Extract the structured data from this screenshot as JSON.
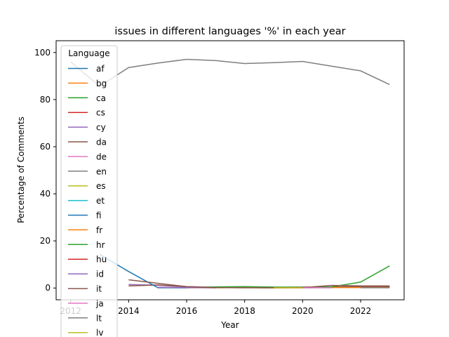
{
  "chart_data": {
    "type": "line",
    "title": "issues in different languages '%' in each year",
    "xlabel": "Year",
    "ylabel": "Percentage of Comments",
    "xlim": [
      2011.5,
      2023.5
    ],
    "ylim": [
      -5,
      105
    ],
    "x_ticks": [
      "2012",
      "2014",
      "2016",
      "2018",
      "2020",
      "2022"
    ],
    "y_ticks": [
      "0",
      "20",
      "40",
      "60",
      "80",
      "100"
    ],
    "grid": false,
    "legend": {
      "title": "Language",
      "placement": "upper-left"
    },
    "series": [
      {
        "name": "af",
        "color": "#1f77b4",
        "points": [
          [
            2015,
            0.1
          ],
          [
            2016,
            0.1
          ]
        ]
      },
      {
        "name": "bg",
        "color": "#ff7f0e",
        "points": [
          [
            2016,
            0.2
          ],
          [
            2017,
            0.1
          ]
        ]
      },
      {
        "name": "ca",
        "color": "#2ca02c",
        "points": [
          [
            2016,
            0.3
          ],
          [
            2017,
            0.2
          ],
          [
            2018,
            0.2
          ],
          [
            2019,
            0.1
          ],
          [
            2020,
            0.2
          ],
          [
            2021,
            0.3
          ],
          [
            2022,
            0.4
          ],
          [
            2023,
            0.2
          ]
        ]
      },
      {
        "name": "cs",
        "color": "#d62728",
        "points": [
          [
            2021,
            0.4
          ],
          [
            2022,
            0.5
          ],
          [
            2023,
            0.4
          ]
        ]
      },
      {
        "name": "cy",
        "color": "#9467bd",
        "points": [
          [
            2014,
            1.5
          ],
          [
            2015,
            1.2
          ],
          [
            2016,
            0.5
          ]
        ]
      },
      {
        "name": "da",
        "color": "#8c564b",
        "points": [
          [
            2014,
            0.9
          ],
          [
            2015,
            1.3
          ],
          [
            2016,
            0.6
          ],
          [
            2017,
            0.3
          ],
          [
            2018,
            0.5
          ],
          [
            2019,
            0.3
          ],
          [
            2020,
            0.4
          ],
          [
            2021,
            0.5
          ],
          [
            2022,
            0.6
          ],
          [
            2023,
            0.7
          ]
        ]
      },
      {
        "name": "de",
        "color": "#e377c2",
        "points": [
          [
            2017,
            0.2
          ],
          [
            2018,
            0.1
          ]
        ]
      },
      {
        "name": "en",
        "color": "#7f7f7f",
        "points": [
          [
            2012,
            96.0
          ],
          [
            2013,
            85.7
          ],
          [
            2014,
            93.6
          ],
          [
            2015,
            95.5
          ],
          [
            2016,
            97.1
          ],
          [
            2017,
            96.6
          ],
          [
            2018,
            95.3
          ],
          [
            2019,
            95.7
          ],
          [
            2020,
            96.2
          ],
          [
            2021,
            94.2
          ],
          [
            2022,
            92.2
          ],
          [
            2023,
            86.4
          ]
        ]
      },
      {
        "name": "es",
        "color": "#bcbd22",
        "points": [
          [
            2018,
            0.1
          ],
          [
            2019,
            0.1
          ]
        ]
      },
      {
        "name": "et",
        "color": "#17becf",
        "points": [
          [
            2020,
            0.1
          ],
          [
            2021,
            0.1
          ]
        ]
      },
      {
        "name": "fi",
        "color": "#1f77b4",
        "points": [
          [
            2013,
            14.3
          ],
          [
            2014,
            7.0
          ],
          [
            2015,
            0.2
          ],
          [
            2016,
            0.1
          ]
        ]
      },
      {
        "name": "fr",
        "color": "#ff7f0e",
        "points": [
          [
            2016,
            0.1
          ],
          [
            2017,
            0.1
          ],
          [
            2018,
            0.2
          ],
          [
            2019,
            0.1
          ],
          [
            2020,
            0.1
          ],
          [
            2021,
            0.2
          ],
          [
            2022,
            0.2
          ],
          [
            2023,
            0.2
          ]
        ]
      },
      {
        "name": "hr",
        "color": "#2ca02c",
        "points": [
          [
            2016,
            0.1
          ],
          [
            2017,
            0.5
          ],
          [
            2018,
            0.6
          ],
          [
            2019,
            0.4
          ],
          [
            2020,
            0.3
          ],
          [
            2021,
            0.5
          ],
          [
            2022,
            2.5
          ],
          [
            2023,
            9.4
          ]
        ]
      },
      {
        "name": "hu",
        "color": "#d62728",
        "points": [
          [
            2019,
            0.1
          ],
          [
            2020,
            0.1
          ]
        ]
      },
      {
        "name": "id",
        "color": "#9467bd",
        "points": [
          [
            2015,
            0.3
          ],
          [
            2016,
            0.2
          ],
          [
            2017,
            0.1
          ]
        ]
      },
      {
        "name": "it",
        "color": "#8c564b",
        "points": [
          [
            2014,
            3.5
          ],
          [
            2015,
            2.0
          ],
          [
            2016,
            0.6
          ],
          [
            2017,
            0.2
          ],
          [
            2018,
            0.1
          ],
          [
            2019,
            0.1
          ],
          [
            2020,
            0.2
          ],
          [
            2021,
            1.1
          ],
          [
            2022,
            0.9
          ],
          [
            2023,
            0.9
          ]
        ]
      },
      {
        "name": "ja",
        "color": "#e377c2",
        "points": [
          [
            2020,
            0.1
          ],
          [
            2021,
            0.1
          ]
        ]
      },
      {
        "name": "lt",
        "color": "#7f7f7f",
        "points": [
          [
            2022,
            0.1
          ],
          [
            2023,
            0.1
          ]
        ]
      },
      {
        "name": "lv",
        "color": "#bcbd22",
        "points": [
          [
            2019,
            0.1
          ],
          [
            2020,
            0.1
          ]
        ]
      }
    ]
  }
}
